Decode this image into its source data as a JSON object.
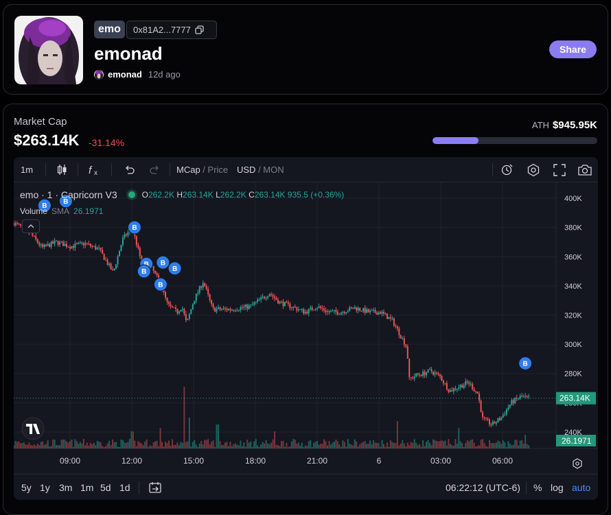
{
  "header": {
    "ticker": "emo",
    "address": "0x81A2...7777",
    "name": "emonad",
    "creator": "emonad",
    "age": "12d ago",
    "share_label": "Share"
  },
  "market": {
    "label": "Market Cap",
    "value": "$263.14K",
    "change": "-31.14%",
    "ath_label": "ATH",
    "ath_value": "$945.95K",
    "ath_progress_fraction": 0.278,
    "colors": {
      "accent": "#8a7cf0",
      "negative": "#ef4b57",
      "positive": "#26a69a"
    }
  },
  "toolbar": {
    "interval": "1m",
    "mcap_label": "MCap",
    "price_label": "Price",
    "usd_label": "USD",
    "mon_label": "MON",
    "icons": [
      "candles-icon",
      "indicators-icon",
      "undo-icon",
      "redo-icon",
      "alert-icon",
      "settings-icon",
      "fullscreen-icon",
      "screenshot-icon"
    ]
  },
  "legend": {
    "title": "emo · 1 · Capricorn V3",
    "o_label": "O",
    "o": "262.2K",
    "h_label": "H",
    "h": "263.14K",
    "l_label": "L",
    "l": "262.2K",
    "c_label": "C",
    "c": "263.14K",
    "change": "935.5 (+0.36%)",
    "volume_label": "Volume",
    "sma_label": "SMA",
    "sma_value": "26.1971"
  },
  "chart_data": {
    "type": "candlestick",
    "y_unit": "market cap (USD)",
    "yticks": [
      "400K",
      "380K",
      "360K",
      "340K",
      "320K",
      "300K",
      "280K",
      "260K",
      "240K"
    ],
    "ylim": [
      232000,
      408000
    ],
    "xticks": [
      "09:00",
      "12:00",
      "15:00",
      "18:00",
      "21:00",
      "6",
      "03:00",
      "06:00"
    ],
    "last_price_label": "263.14K",
    "volume_last_label": "26.1971",
    "trend": [
      [
        7.0,
        383000
      ],
      [
        7.6,
        378000
      ],
      [
        8.2,
        366000
      ],
      [
        8.8,
        370000
      ],
      [
        9.4,
        367000
      ],
      [
        10.0,
        369000
      ],
      [
        10.6,
        365000
      ],
      [
        11.2,
        349000
      ],
      [
        11.6,
        372000
      ],
      [
        12.0,
        380000
      ],
      [
        12.4,
        356000
      ],
      [
        12.8,
        353000
      ],
      [
        13.2,
        341000
      ],
      [
        13.5,
        327000
      ],
      [
        13.9,
        322000
      ],
      [
        14.1,
        326000
      ],
      [
        14.3,
        314000
      ],
      [
        14.6,
        330000
      ],
      [
        15.0,
        343000
      ],
      [
        15.4,
        324000
      ],
      [
        16.2,
        324000
      ],
      [
        17.0,
        326000
      ],
      [
        17.8,
        335000
      ],
      [
        18.2,
        329000
      ],
      [
        18.7,
        326000
      ],
      [
        19.3,
        322000
      ],
      [
        19.8,
        326000
      ],
      [
        20.3,
        322000
      ],
      [
        20.8,
        322000
      ],
      [
        21.4,
        325000
      ],
      [
        22.0,
        322000
      ],
      [
        22.5,
        322000
      ],
      [
        23.0,
        316000
      ],
      [
        23.3,
        307000
      ],
      [
        23.6,
        298000
      ],
      [
        23.7,
        276000
      ],
      [
        24.0,
        279000
      ],
      [
        24.3,
        280000
      ],
      [
        24.6,
        282000
      ],
      [
        25.0,
        278000
      ],
      [
        25.4,
        268000
      ],
      [
        25.8,
        271000
      ],
      [
        26.2,
        274000
      ],
      [
        26.6,
        266000
      ],
      [
        26.8,
        249000
      ],
      [
        27.2,
        245000
      ],
      [
        27.6,
        250000
      ],
      [
        28.0,
        260000
      ],
      [
        28.4,
        264000
      ],
      [
        28.8,
        263140
      ]
    ],
    "volume_spikes": [
      [
        12.0,
        0.25
      ],
      [
        13.2,
        0.3
      ],
      [
        14.2,
        0.9
      ],
      [
        14.4,
        0.45
      ],
      [
        15.6,
        0.35
      ],
      [
        18.0,
        0.25
      ],
      [
        23.2,
        0.4
      ],
      [
        25.8,
        0.3
      ],
      [
        28.6,
        0.2
      ]
    ],
    "buy_markers": [
      {
        "t": 8.3,
        "v": 395000,
        "label": "B"
      },
      {
        "t": 9.2,
        "v": 398000,
        "label": "B"
      },
      {
        "t": 12.1,
        "v": 380000,
        "label": "B"
      },
      {
        "t": 12.6,
        "v": 355000,
        "label": "B"
      },
      {
        "t": 13.3,
        "v": 356000,
        "label": "B"
      },
      {
        "t": 12.5,
        "v": 350000,
        "label": "B"
      },
      {
        "t": 13.8,
        "v": 352000,
        "label": "B"
      },
      {
        "t": 13.2,
        "v": 341000,
        "label": "B"
      },
      {
        "t": 28.6,
        "v": 287000,
        "label": "B"
      }
    ]
  },
  "bottom": {
    "ranges": [
      "5y",
      "1y",
      "3m",
      "1m",
      "5d",
      "1d"
    ],
    "time": "06:22:12",
    "tz": "(UTC-6)",
    "percent": "%",
    "log": "log",
    "auto": "auto"
  }
}
